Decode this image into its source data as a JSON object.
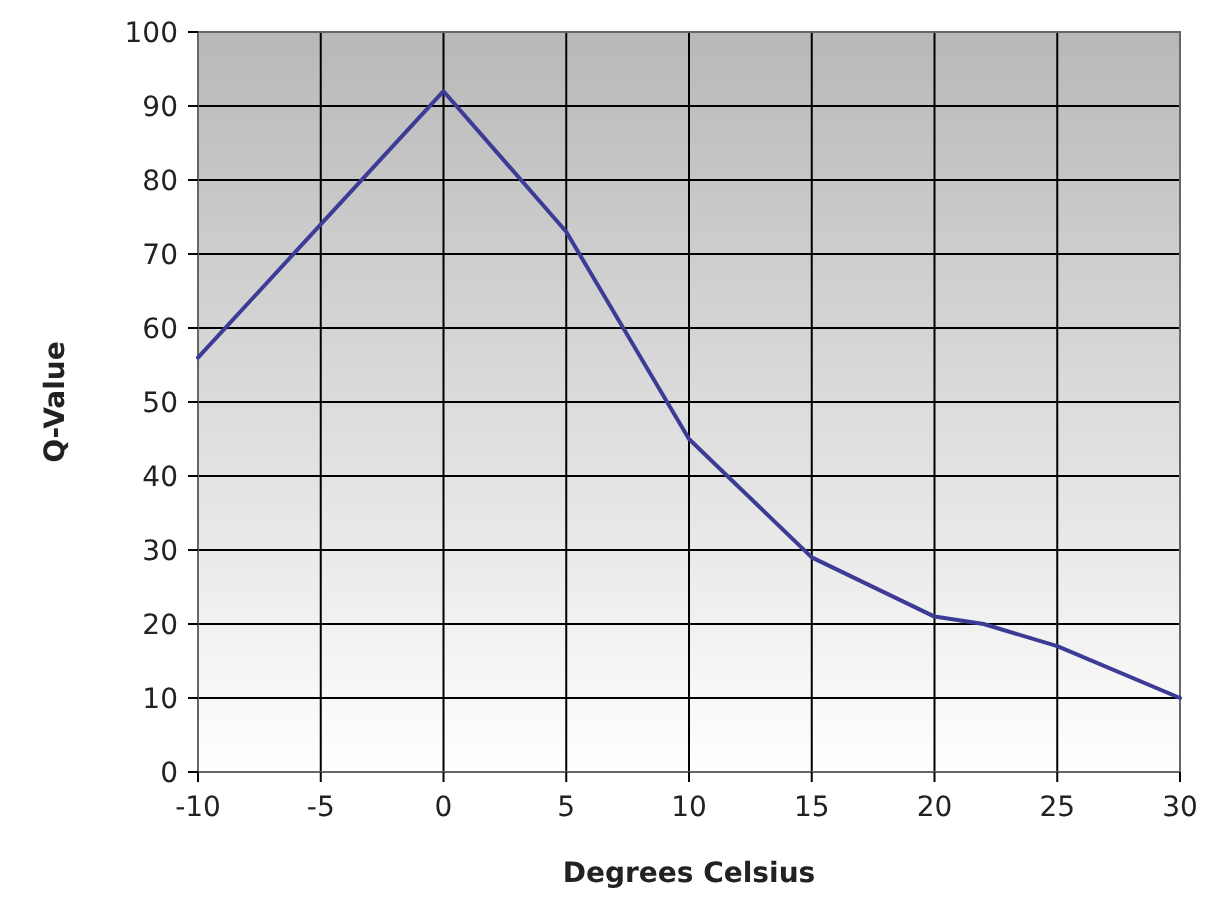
{
  "chart_data": {
    "type": "line",
    "xlabel": "Degrees Celsius",
    "ylabel": "Q-Value",
    "x": [
      -10,
      0,
      5,
      10,
      15,
      20,
      22,
      25,
      30
    ],
    "series": [
      {
        "color": "#3c3c96",
        "values": [
          56,
          92,
          73,
          45,
          29,
          21,
          20,
          17,
          10
        ]
      }
    ],
    "xlim": [
      -10,
      30
    ],
    "xticks": [
      -10,
      -5,
      0,
      5,
      10,
      15,
      20,
      25,
      30
    ],
    "ylim": [
      0,
      100
    ],
    "yticks": [
      0,
      10,
      20,
      30,
      40,
      50,
      60,
      70,
      80,
      90,
      100
    ],
    "grid": true,
    "marker": "none",
    "line_style": "solid"
  }
}
